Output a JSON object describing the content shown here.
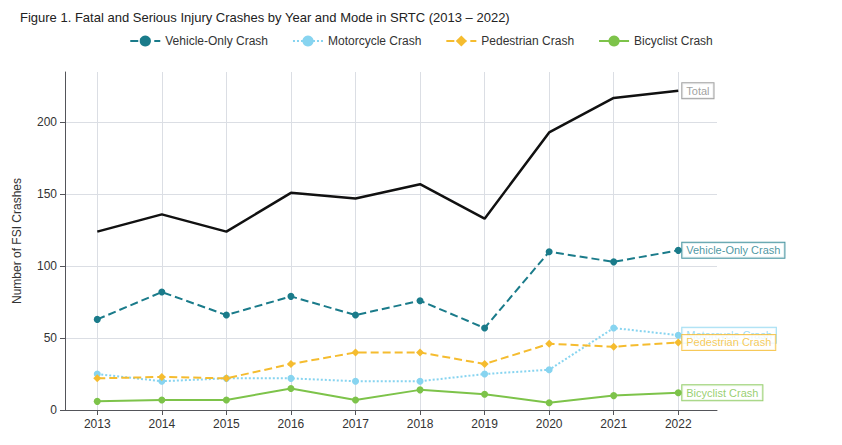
{
  "chart_data": {
    "type": "line",
    "title": "Figure 1. Fatal and Serious Injury Crashes by Year and Mode in SRTC (2013 – 2022)",
    "ylabel": "Number of FSI Crashes",
    "x": [
      2013,
      2014,
      2015,
      2016,
      2017,
      2018,
      2019,
      2020,
      2021,
      2022
    ],
    "xlim": [
      2012.5,
      2022.6
    ],
    "xticks": [
      2013,
      2014,
      2015,
      2016,
      2017,
      2018,
      2019,
      2020,
      2021,
      2022
    ],
    "ylim": [
      0,
      235
    ],
    "yticks": [
      0,
      50,
      100,
      150,
      200
    ],
    "grid": true,
    "legend": "top",
    "series": [
      {
        "color": "#111111",
        "values": [
          124,
          136,
          124,
          151,
          147,
          157,
          133,
          193,
          217,
          222
        ],
        "marker": "none",
        "line_style": "solid"
      },
      {
        "name": "Vehicle-Only Crash",
        "color": "#1a7b8a",
        "values": [
          63,
          82,
          66,
          79,
          66,
          76,
          57,
          110,
          103,
          111
        ],
        "marker": "circle",
        "line_style": "dashed"
      },
      {
        "name": "Motorcycle Crash",
        "color": "#87d4f0",
        "values": [
          25,
          20,
          22,
          22,
          20,
          20,
          25,
          28,
          57,
          52
        ],
        "marker": "circle",
        "line_style": "dotted"
      },
      {
        "name": "Pedestrian Crash",
        "color": "#f5bc2f",
        "values": [
          22,
          23,
          22,
          32,
          40,
          40,
          32,
          46,
          44,
          47
        ],
        "marker": "diamond",
        "line_style": "dashed"
      },
      {
        "name": "Bicyclist Crash",
        "color": "#7dc34a",
        "values": [
          6,
          7,
          7,
          15,
          7,
          14,
          11,
          5,
          10,
          12
        ],
        "marker": "circle",
        "line_style": "solid"
      }
    ],
    "annotations": [
      {
        "text": "Total",
        "x": 2022,
        "y": 222,
        "color": "#888888"
      },
      {
        "text": "Vehicle-Only Crash",
        "x": 2022,
        "y": 111,
        "color": "#1a7b8a"
      },
      {
        "text": "Motorcycle Crash",
        "x": 2022,
        "y": 52,
        "color": "#87d4f0"
      },
      {
        "text": "Pedestrian Crash",
        "x": 2022,
        "y": 47,
        "color": "#f5bc2f"
      },
      {
        "text": "Bicyclist Crash",
        "x": 2022,
        "y": 12,
        "color": "#7dc34a"
      }
    ]
  }
}
